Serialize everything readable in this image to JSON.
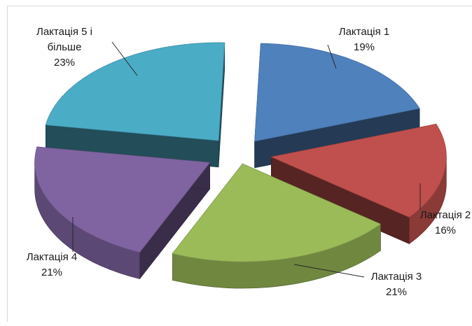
{
  "chart_data": {
    "type": "pie",
    "variant": "3d-exploded",
    "title": "",
    "slices": [
      {
        "label_line1": "Лактація 1",
        "label_line2": "",
        "pct": "19%",
        "value": 19,
        "color": "#4f81bd"
      },
      {
        "label_line1": "Лактація 2",
        "label_line2": "",
        "pct": "16%",
        "value": 16,
        "color": "#c0504d"
      },
      {
        "label_line1": "Лактація 3",
        "label_line2": "",
        "pct": "21%",
        "value": 21,
        "color": "#9bbb59"
      },
      {
        "label_line1": "Лактація 4",
        "label_line2": "",
        "pct": "21%",
        "value": 21,
        "color": "#8064a2"
      },
      {
        "label_line1": "Лактація 5 і",
        "label_line2": "більше",
        "pct": "23%",
        "value": 23,
        "color": "#4bacc6"
      }
    ]
  }
}
